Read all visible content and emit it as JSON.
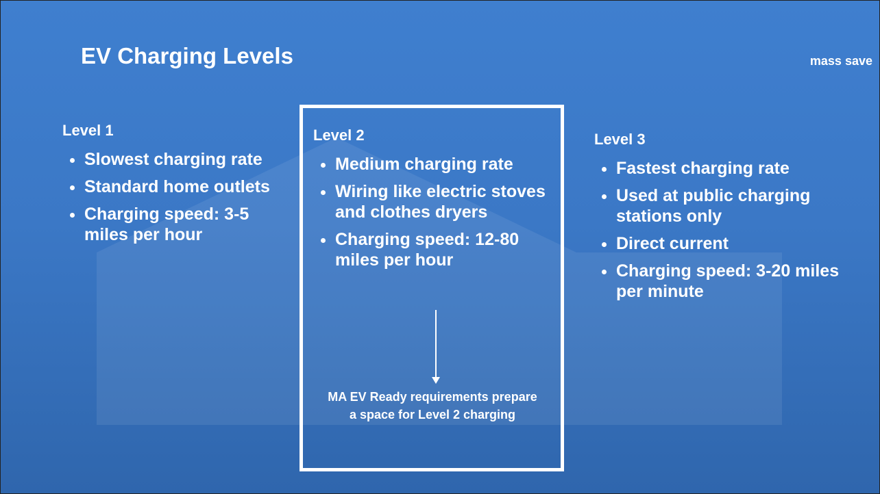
{
  "header": {
    "title": "EV Charging Levels",
    "logo": "mass save"
  },
  "columns": [
    {
      "heading": "Level 1",
      "bullets": [
        "Slowest charging rate",
        "Standard home outlets",
        "Charging speed: 3-5 miles per hour"
      ]
    },
    {
      "heading": "Level 2",
      "bullets": [
        "Medium charging rate",
        "Wiring like electric stoves and clothes dryers",
        "Charging speed: 12-80 miles per hour"
      ],
      "note": "MA EV Ready requirements prepare a space for Level 2 charging"
    },
    {
      "heading": "Level 3",
      "bullets": [
        "Fastest charging rate",
        "Used at public charging stations only",
        "Direct current",
        "Charging speed: 3-20 miles per minute"
      ]
    }
  ]
}
